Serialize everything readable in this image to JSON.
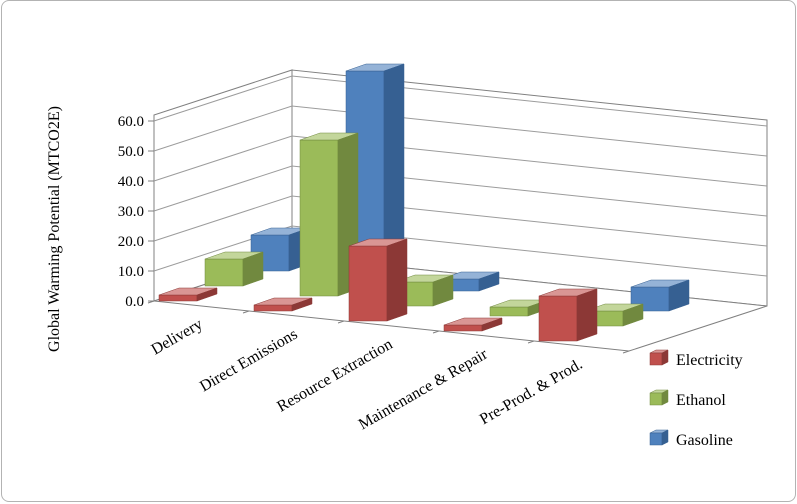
{
  "chart_data": {
    "type": "bar",
    "projection": "3d",
    "title": "",
    "y_axis_title": "Global Warming Potential (MTCO2E)",
    "categories": [
      "Delivery",
      "Direct Emissions",
      "Resource Extraction",
      "Maintenance & Repair",
      "Pre-Prod. & Prod."
    ],
    "series": [
      {
        "name": "Electricity",
        "values": [
          2,
          2,
          25,
          2,
          15
        ],
        "color": {
          "front": "#C0504D",
          "top": "#D99694",
          "side": "#8C3836"
        }
      },
      {
        "name": "Ethanol",
        "values": [
          9,
          52,
          8,
          3,
          5
        ],
        "color": {
          "front": "#9BBB59",
          "top": "#C3D69B",
          "side": "#71893F"
        }
      },
      {
        "name": "Gasoline",
        "values": [
          12,
          70,
          4,
          0,
          8
        ],
        "color": {
          "front": "#4F81BD",
          "top": "#95B3D7",
          "side": "#366092"
        }
      }
    ],
    "y_ticks": [
      "0.0",
      "10.0",
      "20.0",
      "30.0",
      "40.0",
      "50.0",
      "60.0"
    ],
    "ylim": [
      0,
      60
    ],
    "y_tick_step": 10,
    "grid": true,
    "legend_position": "right",
    "colors": {
      "gridline": "#9c9c9c",
      "wall_edge": "#808080",
      "wall_fill": "#ffffff",
      "floor_fill": "#ffffff",
      "text": "#000000"
    }
  }
}
